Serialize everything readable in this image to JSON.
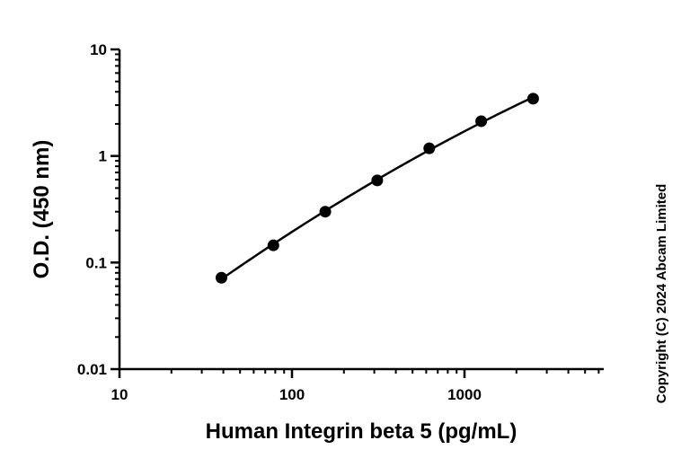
{
  "chart_data": {
    "type": "scatter",
    "xlabel": "Human Integrin beta 5 (pg/mL)",
    "ylabel": "O.D. (450 nm)",
    "x_scale": "log",
    "y_scale": "log",
    "xlim": [
      10,
      6400
    ],
    "ylim": [
      0.01,
      10
    ],
    "x_ticks": [
      10,
      100,
      1000
    ],
    "x_tick_labels": [
      "10",
      "100",
      "1000"
    ],
    "y_ticks": [
      0.01,
      0.1,
      1,
      10
    ],
    "y_tick_labels": [
      "0.01",
      "0.1",
      "1",
      "10"
    ],
    "grid": false,
    "legend": "none",
    "fit_curve": true,
    "marker_color": "#000000",
    "series": [
      {
        "x": [
          39,
          78,
          156,
          312,
          625,
          1250,
          2500
        ],
        "y": [
          0.072,
          0.145,
          0.3,
          0.59,
          1.18,
          2.12,
          3.45
        ]
      }
    ]
  },
  "copyright": "Copyright (C) 2024 Abcam Limited"
}
